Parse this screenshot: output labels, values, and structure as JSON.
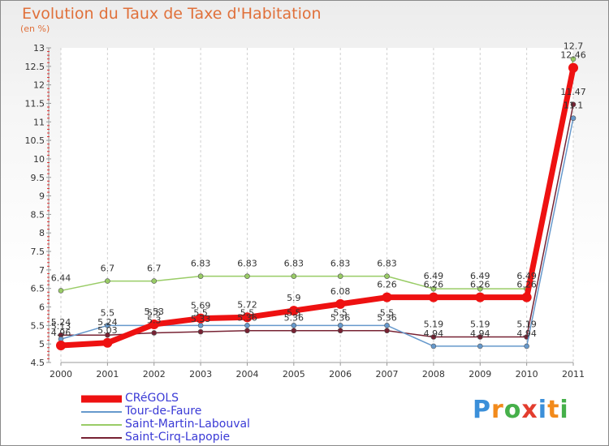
{
  "title": "Evolution du Taux de Taxe d'Habitation",
  "subtitle": "(en %)",
  "brand": {
    "letters": [
      "P",
      "r",
      "o",
      "x",
      "i",
      "t",
      "i"
    ],
    "colors": [
      "#3b8fd9",
      "#f28a1b",
      "#46b04a",
      "#e33d2e",
      "#3b8fd9",
      "#f28a1b",
      "#46b04a"
    ]
  },
  "chart_data": {
    "type": "line",
    "title": "Evolution du Taux de Taxe d'Habitation",
    "subtitle": "(en %)",
    "x": [
      "2000",
      "2001",
      "2002",
      "2003",
      "2004",
      "2005",
      "2006",
      "2007",
      "2008",
      "2009",
      "2010",
      "2011"
    ],
    "ylim": [
      4.5,
      13
    ],
    "yticks": [
      "4.5",
      "5",
      "5.5",
      "6",
      "6.5",
      "7",
      "7.5",
      "8",
      "8.5",
      "9",
      "9.5",
      "10",
      "10.5",
      "11",
      "11.5",
      "12",
      "12.5",
      "13"
    ],
    "grid": "vertical",
    "legend_position": "bottom-left",
    "series": [
      {
        "name": "CRéGOLS",
        "color": "#ee1111",
        "values": [
          4.96,
          5.03,
          5.53,
          5.69,
          5.72,
          5.9,
          6.08,
          6.26,
          6.26,
          6.26,
          6.26,
          12.46
        ],
        "labels": [
          "4.96",
          "5.03",
          "5.53",
          "5.69",
          "5.72",
          "5.9",
          "6.08",
          "6.26",
          "6.26",
          "6.26",
          "6.26",
          "12.46"
        ]
      },
      {
        "name": "Tour-de-Faure",
        "color": "#6699cc",
        "values": [
          5.13,
          5.5,
          5.5,
          5.5,
          5.5,
          5.5,
          5.5,
          5.5,
          4.94,
          4.94,
          4.94,
          11.1
        ],
        "labels": [
          "5.13",
          "5.5",
          "5.5",
          "5.5",
          "5.5",
          "5.5",
          "5.5",
          "5.5",
          "4.94",
          "4.94",
          "4.94",
          "11.1"
        ]
      },
      {
        "name": "Saint-Martin-Labouval",
        "color": "#99cc66",
        "values": [
          6.44,
          6.7,
          6.7,
          6.83,
          6.83,
          6.83,
          6.83,
          6.83,
          6.49,
          6.49,
          6.49,
          12.7
        ],
        "labels": [
          "6.44",
          "6.7",
          "6.7",
          "6.83",
          "6.83",
          "6.83",
          "6.83",
          "6.83",
          "6.49",
          "6.49",
          "6.49",
          "12.7"
        ]
      },
      {
        "name": "Saint-Cirq-Lapopie",
        "color": "#772233",
        "values": [
          5.24,
          5.24,
          5.3,
          5.33,
          5.36,
          5.36,
          5.36,
          5.36,
          5.19,
          5.19,
          5.19,
          11.47
        ],
        "labels": [
          "5.24",
          "5.24",
          "5.3",
          "5.33",
          "5.36",
          "5.36",
          "5.36",
          "5.36",
          "5.19",
          "5.19",
          "5.19",
          "11.47"
        ]
      }
    ]
  }
}
